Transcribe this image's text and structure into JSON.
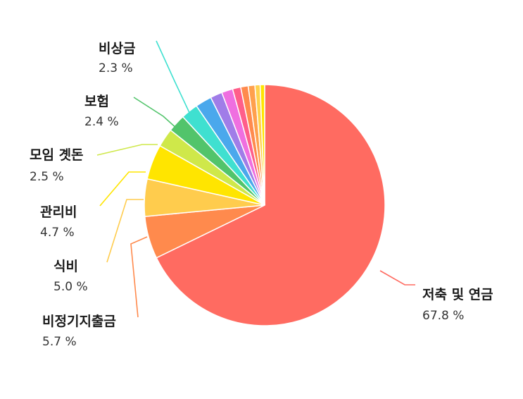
{
  "chart_data": {
    "type": "pie",
    "unit": "%",
    "slices": [
      {
        "label": "저축 및 연금",
        "value": 67.8,
        "display": "67.8 %",
        "color": "#ff6b61"
      },
      {
        "label": "비정기지출금",
        "value": 5.7,
        "display": "5.7 %",
        "color": "#ff8a4d"
      },
      {
        "label": "식비",
        "value": 5.0,
        "display": "5.0 %",
        "color": "#ffcc4d"
      },
      {
        "label": "관리비",
        "value": 4.7,
        "display": "4.7 %",
        "color": "#ffe500"
      },
      {
        "label": "모임 곗돈",
        "value": 2.5,
        "display": "2.5 %",
        "color": "#cfe84a"
      },
      {
        "label": "보험",
        "value": 2.4,
        "display": "2.4 %",
        "color": "#52c46b"
      },
      {
        "label": "비상금",
        "value": 2.3,
        "display": "2.3 %",
        "color": "#3fe0d0"
      },
      {
        "label": "",
        "value": 2.2,
        "display": "",
        "color": "#4aa8ec"
      },
      {
        "label": "",
        "value": 1.6,
        "display": "",
        "color": "#a07de8"
      },
      {
        "label": "",
        "value": 1.5,
        "display": "",
        "color": "#ef6fe0"
      },
      {
        "label": "",
        "value": 1.1,
        "display": "",
        "color": "#ff5e8a"
      },
      {
        "label": "",
        "value": 1.0,
        "display": "",
        "color": "#ff8a4d"
      },
      {
        "label": "",
        "value": 0.9,
        "display": "",
        "color": "#ffa04d"
      },
      {
        "label": "",
        "value": 0.7,
        "display": "",
        "color": "#ffd24d"
      },
      {
        "label": "",
        "value": 0.6,
        "display": "",
        "color": "#ffe500"
      }
    ]
  }
}
